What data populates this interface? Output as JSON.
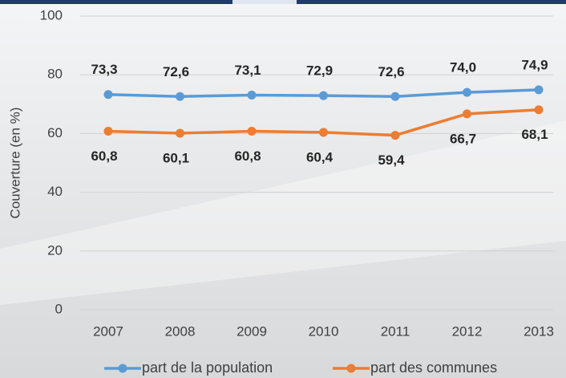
{
  "chart_data": {
    "type": "line",
    "y_label": "Couverture (en %)",
    "categories": [
      "2007",
      "2008",
      "2009",
      "2010",
      "2011",
      "2012",
      "2013"
    ],
    "series": [
      {
        "name": "part de la population",
        "color": "#5b9bd5",
        "values": [
          73.3,
          72.6,
          73.1,
          72.9,
          72.6,
          74.0,
          74.9
        ],
        "value_labels": [
          "73,3",
          "72,6",
          "73,1",
          "72,9",
          "72,6",
          "74,0",
          "74,9"
        ]
      },
      {
        "name": "part des communes",
        "color": "#ed7d31",
        "values": [
          60.8,
          60.1,
          60.8,
          60.4,
          59.4,
          66.7,
          68.1
        ],
        "value_labels": [
          "60,8",
          "60,1",
          "60,8",
          "60,4",
          "59,4",
          "66,7",
          "68,1"
        ]
      }
    ],
    "ylim": [
      0,
      100
    ],
    "yticks": [
      0,
      20,
      40,
      60,
      80,
      100
    ],
    "grid": true
  }
}
